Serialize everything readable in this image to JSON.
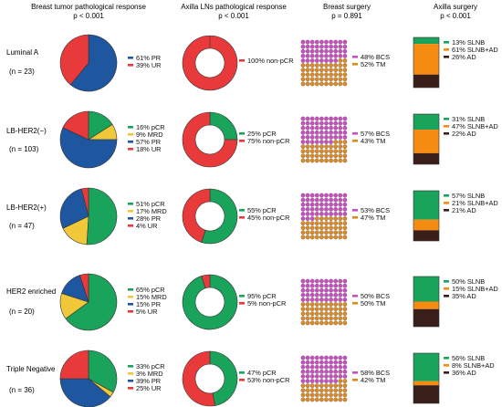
{
  "colors": {
    "pCR": "#1aa35a",
    "MRD": "#f0c83a",
    "PR": "#1f56a0",
    "UR": "#e83a3a",
    "nonpCR": "#e83a3a",
    "BCS": "#cc4cc4",
    "TM": "#e08a1e",
    "SLNB": "#1aa35a",
    "SLNBAD": "#f58b10",
    "AD": "#3a1e1a"
  },
  "chart_data": [
    {
      "type": "pie",
      "title": "Breast tumor pathological response",
      "subtitle": "p < 0.001",
      "groups": [
        {
          "name": "Luminal A",
          "n": "(n = 23)",
          "slices": [
            {
              "label": "PR",
              "value": 61
            },
            {
              "label": "UR",
              "value": 39
            }
          ]
        },
        {
          "name": "LB-HER2(−)",
          "n": "(n = 103)",
          "slices": [
            {
              "label": "pCR",
              "value": 16
            },
            {
              "label": "MRD",
              "value": 9
            },
            {
              "label": "PR",
              "value": 57
            },
            {
              "label": "UR",
              "value": 18
            }
          ]
        },
        {
          "name": "LB-HER2(+)",
          "n": "(n = 47)",
          "slices": [
            {
              "label": "pCR",
              "value": 51
            },
            {
              "label": "MRD",
              "value": 17
            },
            {
              "label": "PR",
              "value": 28
            },
            {
              "label": "UR",
              "value": 4
            }
          ]
        },
        {
          "name": "HER2 enriched",
          "n": "(n = 20)",
          "slices": [
            {
              "label": "pCR",
              "value": 65
            },
            {
              "label": "MRD",
              "value": 15
            },
            {
              "label": "PR",
              "value": 15
            },
            {
              "label": "UR",
              "value": 5
            }
          ]
        },
        {
          "name": "Triple Negative",
          "n": "(n = 36)",
          "slices": [
            {
              "label": "pCR",
              "value": 33
            },
            {
              "label": "MRD",
              "value": 3
            },
            {
              "label": "PR",
              "value": 39
            },
            {
              "label": "UR",
              "value": 25
            }
          ]
        }
      ]
    },
    {
      "type": "pie",
      "style": "donut",
      "title": "Axilla LNs pathological response",
      "subtitle": "p < 0.001",
      "groups": [
        {
          "name": "Luminal A",
          "slices": [
            {
              "label": "non-pCR",
              "value": 100
            }
          ]
        },
        {
          "name": "LB-HER2(−)",
          "slices": [
            {
              "label": "pCR",
              "value": 25
            },
            {
              "label": "non-pCR",
              "value": 75
            }
          ]
        },
        {
          "name": "LB-HER2(+)",
          "slices": [
            {
              "label": "pCR",
              "value": 55
            },
            {
              "label": "non-pCR",
              "value": 45
            }
          ]
        },
        {
          "name": "HER2 enriched",
          "slices": [
            {
              "label": "pCR",
              "value": 95
            },
            {
              "label": "non-pCR",
              "value": 5
            }
          ]
        },
        {
          "name": "Triple Negative",
          "slices": [
            {
              "label": "pCR",
              "value": 47
            },
            {
              "label": "non-pCR",
              "value": 53
            }
          ]
        }
      ]
    },
    {
      "type": "waffle",
      "title": "Breast surgery",
      "subtitle": "p = 0.891",
      "groups": [
        {
          "name": "Luminal A",
          "slices": [
            {
              "label": "BCS",
              "value": 48
            },
            {
              "label": "TM",
              "value": 52
            }
          ]
        },
        {
          "name": "LB-HER2(−)",
          "slices": [
            {
              "label": "BCS",
              "value": 57
            },
            {
              "label": "TM",
              "value": 43
            }
          ]
        },
        {
          "name": "LB-HER2(+)",
          "slices": [
            {
              "label": "BCS",
              "value": 53
            },
            {
              "label": "TM",
              "value": 47
            }
          ]
        },
        {
          "name": "HER2 enriched",
          "slices": [
            {
              "label": "BCS",
              "value": 50
            },
            {
              "label": "TM",
              "value": 50
            }
          ]
        },
        {
          "name": "Triple Negative",
          "slices": [
            {
              "label": "BCS",
              "value": 58
            },
            {
              "label": "TM",
              "value": 42
            }
          ]
        }
      ]
    },
    {
      "type": "bar",
      "stacked": true,
      "title": "Axilla surgery",
      "subtitle": "p < 0.001",
      "groups": [
        {
          "name": "Luminal A",
          "slices": [
            {
              "label": "SLNB",
              "value": 13
            },
            {
              "label": "SLNB+AD",
              "value": 61
            },
            {
              "label": "AD",
              "value": 26
            }
          ]
        },
        {
          "name": "LB-HER2(−)",
          "slices": [
            {
              "label": "SLNB",
              "value": 31
            },
            {
              "label": "SLNB+AD",
              "value": 47
            },
            {
              "label": "AD",
              "value": 22
            }
          ]
        },
        {
          "name": "LB-HER2(+)",
          "slices": [
            {
              "label": "SLNB",
              "value": 57
            },
            {
              "label": "SLNB+AD",
              "value": 21
            },
            {
              "label": "AD",
              "value": 21
            }
          ]
        },
        {
          "name": "HER2 enriched",
          "slices": [
            {
              "label": "SLNB",
              "value": 50
            },
            {
              "label": "SLNB+AD",
              "value": 15
            },
            {
              "label": "AD",
              "value": 35
            }
          ]
        },
        {
          "name": "Triple Negative",
          "slices": [
            {
              "label": "SLNB",
              "value": 56
            },
            {
              "label": "SLNB+AD",
              "value": 8
            },
            {
              "label": "AD",
              "value": 36
            }
          ]
        }
      ]
    }
  ]
}
